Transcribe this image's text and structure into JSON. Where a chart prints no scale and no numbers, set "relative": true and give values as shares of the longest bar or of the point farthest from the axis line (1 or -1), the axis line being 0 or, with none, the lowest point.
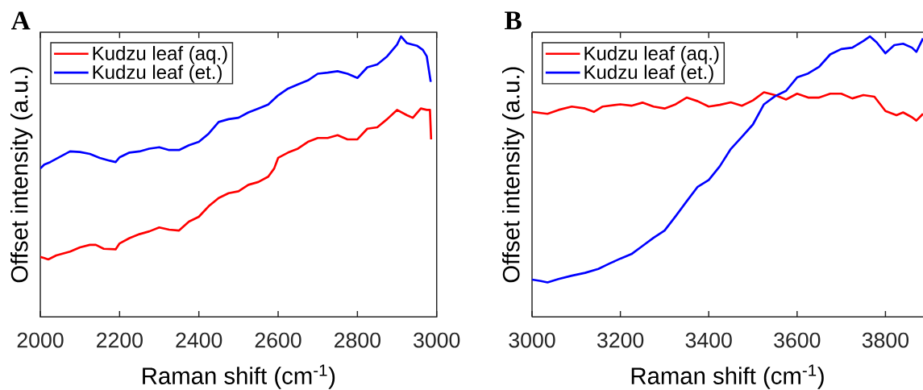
{
  "chart_data": [
    {
      "type": "line",
      "title": "A",
      "xlabel": "Raman shift (cm$^{-1}$)",
      "ylabel": "Offset intensity (a.u.)",
      "relative": true,
      "legend": "top left",
      "xlim": [
        2000,
        3000
      ],
      "xticks": [
        2000,
        2200,
        2400,
        2600,
        2800,
        3000
      ],
      "series": [
        {
          "name": "Kudzu leaf (aq.)",
          "color": "#ff0000",
          "x": [
            2000,
            2010,
            2020,
            2040,
            2075,
            2100,
            2125,
            2140,
            2160,
            2190,
            2200,
            2225,
            2250,
            2275,
            2300,
            2325,
            2350,
            2375,
            2400,
            2425,
            2450,
            2475,
            2500,
            2525,
            2550,
            2575,
            2590,
            2600,
            2625,
            2650,
            2675,
            2700,
            2725,
            2750,
            2775,
            2800,
            2825,
            2850,
            2875,
            2900,
            2925,
            2940,
            2960,
            2975,
            2983,
            2986
          ],
          "values": [
            0.214,
            0.21,
            0.205,
            0.219,
            0.233,
            0.248,
            0.257,
            0.257,
            0.243,
            0.241,
            0.262,
            0.281,
            0.295,
            0.305,
            0.319,
            0.311,
            0.308,
            0.34,
            0.357,
            0.395,
            0.424,
            0.441,
            0.448,
            0.471,
            0.481,
            0.5,
            0.529,
            0.567,
            0.586,
            0.6,
            0.624,
            0.638,
            0.638,
            0.648,
            0.633,
            0.633,
            0.671,
            0.676,
            0.705,
            0.738,
            0.719,
            0.71,
            0.743,
            0.738,
            0.738,
            0.633
          ]
        },
        {
          "name": "Kudzu leaf (et.)",
          "color": "#0000ff",
          "x": [
            2000,
            2010,
            2025,
            2050,
            2075,
            2100,
            2125,
            2150,
            2175,
            2190,
            2200,
            2225,
            2250,
            2275,
            2300,
            2325,
            2350,
            2375,
            2400,
            2425,
            2450,
            2475,
            2500,
            2525,
            2550,
            2575,
            2600,
            2625,
            2650,
            2675,
            2700,
            2725,
            2750,
            2775,
            2800,
            2825,
            2850,
            2875,
            2900,
            2910,
            2925,
            2950,
            2965,
            2975,
            2985
          ],
          "values": [
            0.529,
            0.543,
            0.552,
            0.571,
            0.59,
            0.588,
            0.581,
            0.567,
            0.557,
            0.552,
            0.569,
            0.586,
            0.59,
            0.6,
            0.605,
            0.595,
            0.595,
            0.612,
            0.624,
            0.654,
            0.695,
            0.705,
            0.71,
            0.729,
            0.743,
            0.757,
            0.79,
            0.814,
            0.829,
            0.843,
            0.867,
            0.871,
            0.876,
            0.867,
            0.852,
            0.89,
            0.9,
            0.929,
            0.971,
            1.0,
            0.976,
            0.967,
            0.952,
            0.929,
            0.838
          ]
        }
      ]
    },
    {
      "type": "line",
      "title": "B",
      "xlabel": "Raman shift (cm$^{-1}$)",
      "ylabel": "Offset intensity (a.u.)",
      "relative": true,
      "legend": "top left",
      "xlim": [
        3000,
        3885
      ],
      "xticks": [
        3000,
        3200,
        3400,
        3600,
        3800
      ],
      "series": [
        {
          "name": "Kudzu leaf (aq.)",
          "color": "#ff0000",
          "x": [
            3000,
            3020,
            3035,
            3060,
            3090,
            3120,
            3140,
            3160,
            3200,
            3225,
            3250,
            3275,
            3300,
            3325,
            3350,
            3375,
            3400,
            3425,
            3450,
            3475,
            3500,
            3525,
            3550,
            3575,
            3600,
            3625,
            3650,
            3675,
            3700,
            3725,
            3750,
            3775,
            3800,
            3825,
            3840,
            3860,
            3870,
            3885
          ],
          "values": [
            0.731,
            0.727,
            0.724,
            0.738,
            0.75,
            0.743,
            0.731,
            0.75,
            0.758,
            0.753,
            0.764,
            0.75,
            0.743,
            0.758,
            0.782,
            0.769,
            0.75,
            0.756,
            0.765,
            0.753,
            0.772,
            0.801,
            0.791,
            0.775,
            0.796,
            0.782,
            0.782,
            0.796,
            0.796,
            0.779,
            0.791,
            0.785,
            0.734,
            0.719,
            0.729,
            0.712,
            0.7,
            0.724
          ]
        },
        {
          "name": "Kudzu leaf (et.)",
          "color": "#0000ff",
          "x": [
            3000,
            3020,
            3035,
            3060,
            3090,
            3120,
            3150,
            3175,
            3200,
            3225,
            3250,
            3275,
            3300,
            3325,
            3350,
            3375,
            3400,
            3425,
            3450,
            3475,
            3500,
            3525,
            3550,
            3575,
            3600,
            3625,
            3650,
            3675,
            3700,
            3725,
            3750,
            3765,
            3780,
            3800,
            3820,
            3840,
            3860,
            3870,
            3885
          ],
          "values": [
            0.133,
            0.128,
            0.123,
            0.135,
            0.147,
            0.157,
            0.171,
            0.19,
            0.208,
            0.224,
            0.253,
            0.282,
            0.308,
            0.359,
            0.412,
            0.464,
            0.488,
            0.537,
            0.599,
            0.642,
            0.686,
            0.758,
            0.787,
            0.806,
            0.854,
            0.868,
            0.892,
            0.936,
            0.955,
            0.96,
            0.984,
            1.0,
            0.979,
            0.94,
            0.969,
            0.974,
            0.96,
            0.945,
            0.993
          ]
        }
      ]
    }
  ]
}
